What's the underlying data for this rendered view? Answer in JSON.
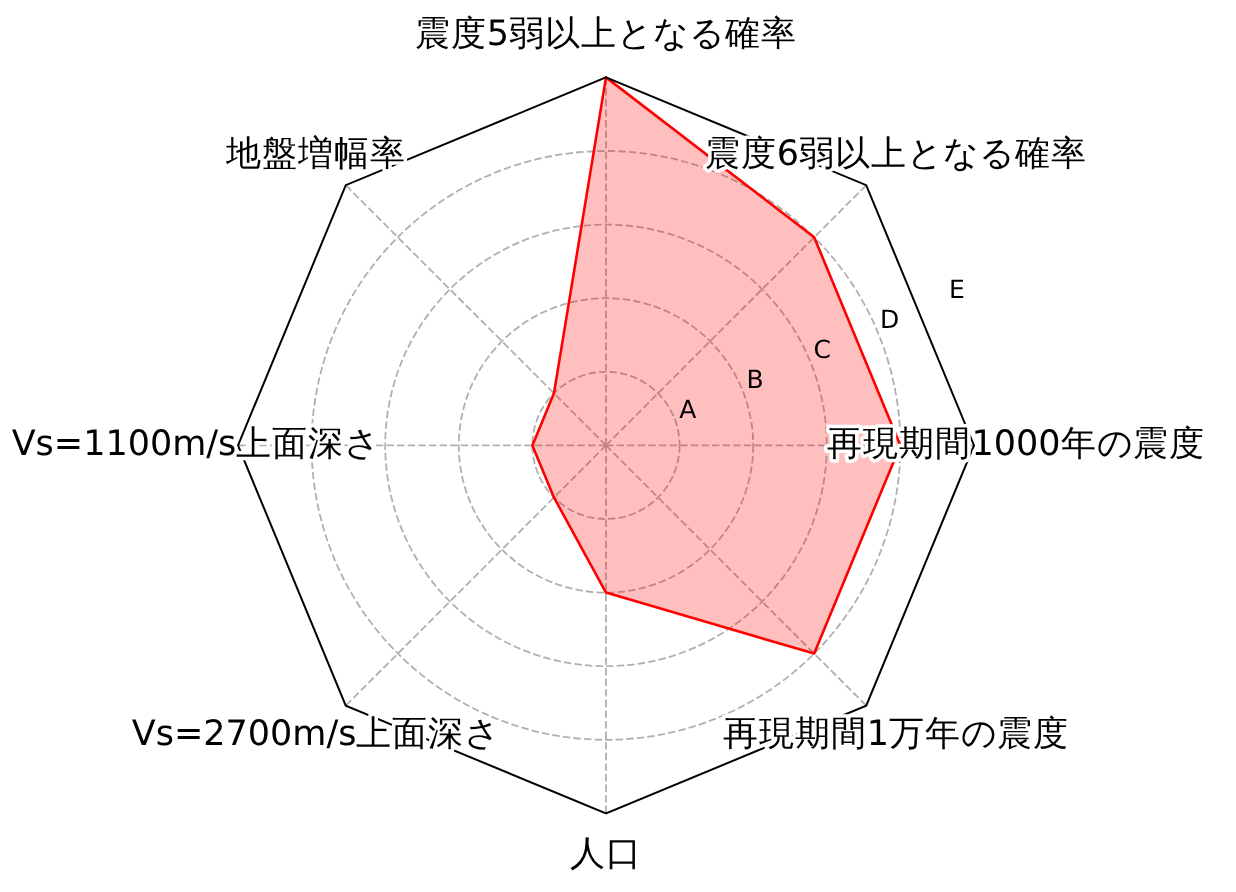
{
  "chart_data": {
    "type": "radar",
    "categories": [
      "震度5弱以上となる確率",
      "震度6弱以上となる確率",
      "再現期間1000年の震度",
      "再現期間1万年の震度",
      "人口",
      "Vs=2700m/s上面深さ",
      "Vs=1100m/s上面深さ",
      "地盤増幅率"
    ],
    "series": [
      {
        "color": "#ff0000",
        "values": [
          5,
          4,
          4,
          4,
          2,
          1,
          1,
          1
        ]
      }
    ],
    "ylim": [
      0,
      5
    ],
    "yticks": [
      {
        "value": 1,
        "label": "A"
      },
      {
        "value": 2,
        "label": "B"
      },
      {
        "value": 3,
        "label": "C"
      },
      {
        "value": 4,
        "label": "D"
      },
      {
        "value": 5,
        "label": "E"
      }
    ],
    "grid": true
  }
}
